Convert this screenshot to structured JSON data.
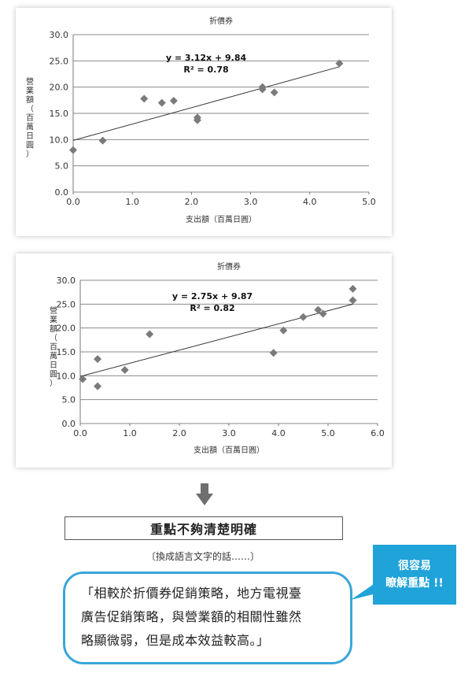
{
  "chart_data": [
    {
      "type": "scatter",
      "title": "折價券",
      "xlabel": "支出額（百萬日圓）",
      "ylabel": "營業額（百萬日圓）",
      "xlim": [
        0,
        5
      ],
      "ylim": [
        0,
        30
      ],
      "x_ticks": [
        "0.0",
        "1.0",
        "2.0",
        "3.0",
        "4.0",
        "5.0"
      ],
      "y_ticks": [
        "0.0",
        "5.0",
        "10.0",
        "15.0",
        "20.0",
        "25.0",
        "30.0"
      ],
      "points": [
        {
          "x": 0.0,
          "y": 8.0
        },
        {
          "x": 0.5,
          "y": 9.8
        },
        {
          "x": 1.2,
          "y": 17.8
        },
        {
          "x": 1.5,
          "y": 17.0
        },
        {
          "x": 1.7,
          "y": 17.4
        },
        {
          "x": 2.1,
          "y": 14.2
        },
        {
          "x": 2.1,
          "y": 13.7
        },
        {
          "x": 3.2,
          "y": 20.0
        },
        {
          "x": 3.2,
          "y": 19.6
        },
        {
          "x": 3.4,
          "y": 19.0
        },
        {
          "x": 4.5,
          "y": 24.5
        }
      ],
      "trendline": {
        "slope": 3.12,
        "intercept": 9.84,
        "x_range": [
          0,
          4.5
        ]
      },
      "equation": "y = 3.12x + 9.84",
      "r_squared": "R² = 0.78",
      "grid": true
    },
    {
      "type": "scatter",
      "title": "折價券",
      "xlabel": "支出額（百萬日圓）",
      "ylabel": "營業額（百萬日圓）",
      "xlim": [
        0,
        6
      ],
      "ylim": [
        0,
        30
      ],
      "x_ticks": [
        "0.0",
        "1.0",
        "2.0",
        "3.0",
        "4.0",
        "5.0",
        "6.0"
      ],
      "y_ticks": [
        "0.0",
        "5.0",
        "10.0",
        "15.0",
        "20.0",
        "25.0",
        "30.0"
      ],
      "points": [
        {
          "x": 0.05,
          "y": 9.3
        },
        {
          "x": 0.35,
          "y": 13.5
        },
        {
          "x": 0.35,
          "y": 7.8
        },
        {
          "x": 0.9,
          "y": 11.2
        },
        {
          "x": 1.4,
          "y": 18.7
        },
        {
          "x": 3.9,
          "y": 14.8
        },
        {
          "x": 4.1,
          "y": 19.5
        },
        {
          "x": 4.5,
          "y": 22.3
        },
        {
          "x": 4.8,
          "y": 23.8
        },
        {
          "x": 4.9,
          "y": 23.0
        },
        {
          "x": 5.5,
          "y": 28.2
        },
        {
          "x": 5.5,
          "y": 25.8
        }
      ],
      "trendline": {
        "slope": 2.75,
        "intercept": 9.87,
        "x_range": [
          0,
          5.5
        ]
      },
      "equation": "y = 2.75x + 9.87",
      "r_squared": "R² = 0.82",
      "grid": true
    }
  ],
  "headline": "重點不夠清楚明確",
  "reword_note": "〔換成語言文字的話……〕",
  "quote_lines": [
    "「相較於折價券促銷策略，地方電視臺",
    "廣告促銷策略，與營業額的相關性雖然",
    "略顯微弱，但是成本效益較高。」"
  ],
  "callout_lines": [
    "很容易",
    "瞭解重點 !!"
  ],
  "colors": {
    "marker": "#7a7a7a",
    "gridline": "#8a8a8a",
    "trendline": "#333333",
    "accent_blue": "#1fa3d9",
    "bubble_border": "#3aa6d8",
    "arrow": "#6e6e6e"
  }
}
